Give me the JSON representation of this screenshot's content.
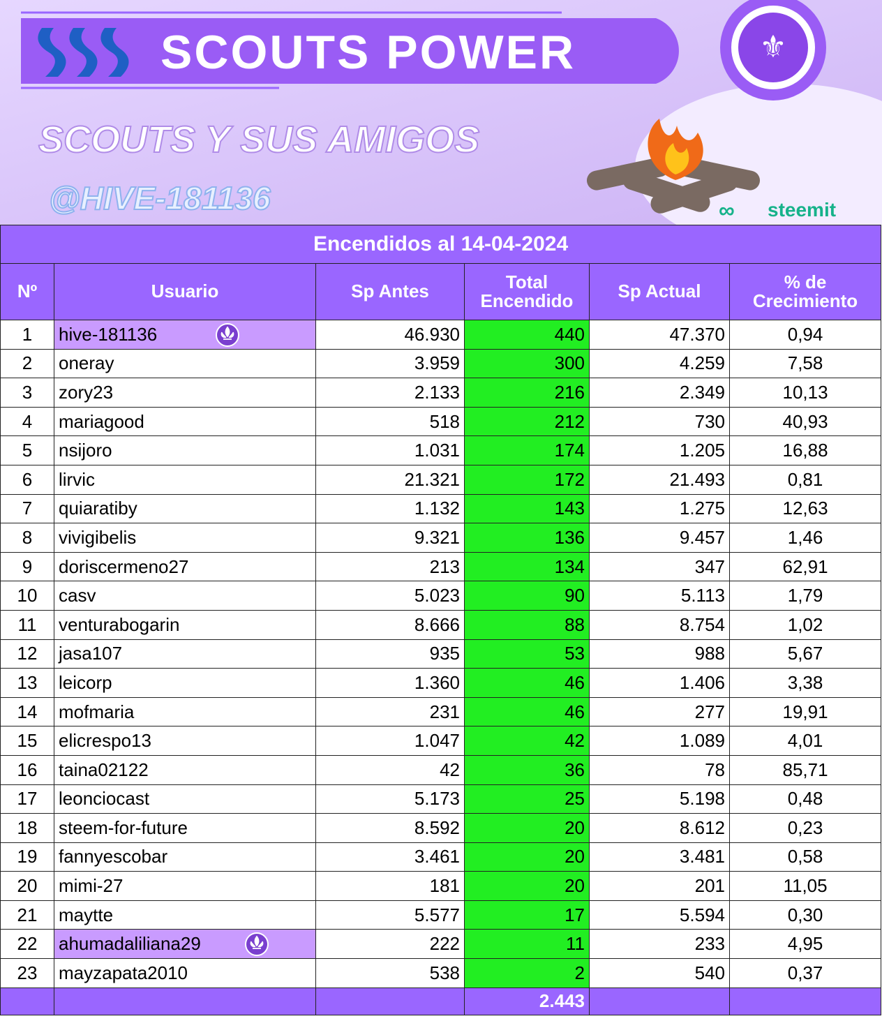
{
  "banner": {
    "title": "SCOUTS POWER",
    "subtitle": "SCOUTS Y SUS AMIGOS",
    "handle": "@HIVE-181136",
    "platform": "steemit"
  },
  "table": {
    "title": "Encendidos al 14-04-2024",
    "headers": [
      "Nº",
      "Usuario",
      "Sp Antes",
      "Total Encendido",
      "Sp Actual",
      "% de Crecimiento"
    ],
    "rows": [
      [
        "1",
        "hive-181136",
        "46.930",
        "440",
        "47.370",
        "0,94"
      ],
      [
        "2",
        "oneray",
        "3.959",
        "300",
        "4.259",
        "7,58"
      ],
      [
        "3",
        "zory23",
        "2.133",
        "216",
        "2.349",
        "10,13"
      ],
      [
        "4",
        "mariagood",
        "518",
        "212",
        "730",
        "40,93"
      ],
      [
        "5",
        "nsijoro",
        "1.031",
        "174",
        "1.205",
        "16,88"
      ],
      [
        "6",
        "lirvic",
        "21.321",
        "172",
        "21.493",
        "0,81"
      ],
      [
        "7",
        "quiaratiby",
        "1.132",
        "143",
        "1.275",
        "12,63"
      ],
      [
        "8",
        "vivigibelis",
        "9.321",
        "136",
        "9.457",
        "1,46"
      ],
      [
        "9",
        "doriscermeno27",
        "213",
        "134",
        "347",
        "62,91"
      ],
      [
        "10",
        "casv",
        "5.023",
        "90",
        "5.113",
        "1,79"
      ],
      [
        "11",
        "venturabogarin",
        "8.666",
        "88",
        "8.754",
        "1,02"
      ],
      [
        "12",
        "jasa107",
        "935",
        "53",
        "988",
        "5,67"
      ],
      [
        "13",
        "leicorp",
        "1.360",
        "46",
        "1.406",
        "3,38"
      ],
      [
        "14",
        "mofmaria",
        "231",
        "46",
        "277",
        "19,91"
      ],
      [
        "15",
        "elicrespo13",
        "1.047",
        "42",
        "1.089",
        "4,01"
      ],
      [
        "16",
        "taina02122",
        "42",
        "36",
        "78",
        "85,71"
      ],
      [
        "17",
        "leonciocast",
        "5.173",
        "25",
        "5.198",
        "0,48"
      ],
      [
        "18",
        "steem-for-future",
        "8.592",
        "20",
        "8.612",
        "0,23"
      ],
      [
        "19",
        "fannyescobar",
        "3.461",
        "20",
        "3.481",
        "0,58"
      ],
      [
        "20",
        "mimi-27",
        "181",
        "20",
        "201",
        "11,05"
      ],
      [
        "21",
        "maytte",
        "5.577",
        "17",
        "5.594",
        "0,30"
      ],
      [
        "22",
        "ahumadaliliana29",
        "222",
        "11",
        "233",
        "4,95"
      ],
      [
        "23",
        "mayzapata2010",
        "538",
        "2",
        "540",
        "0,37"
      ]
    ],
    "total": "2.443"
  }
}
